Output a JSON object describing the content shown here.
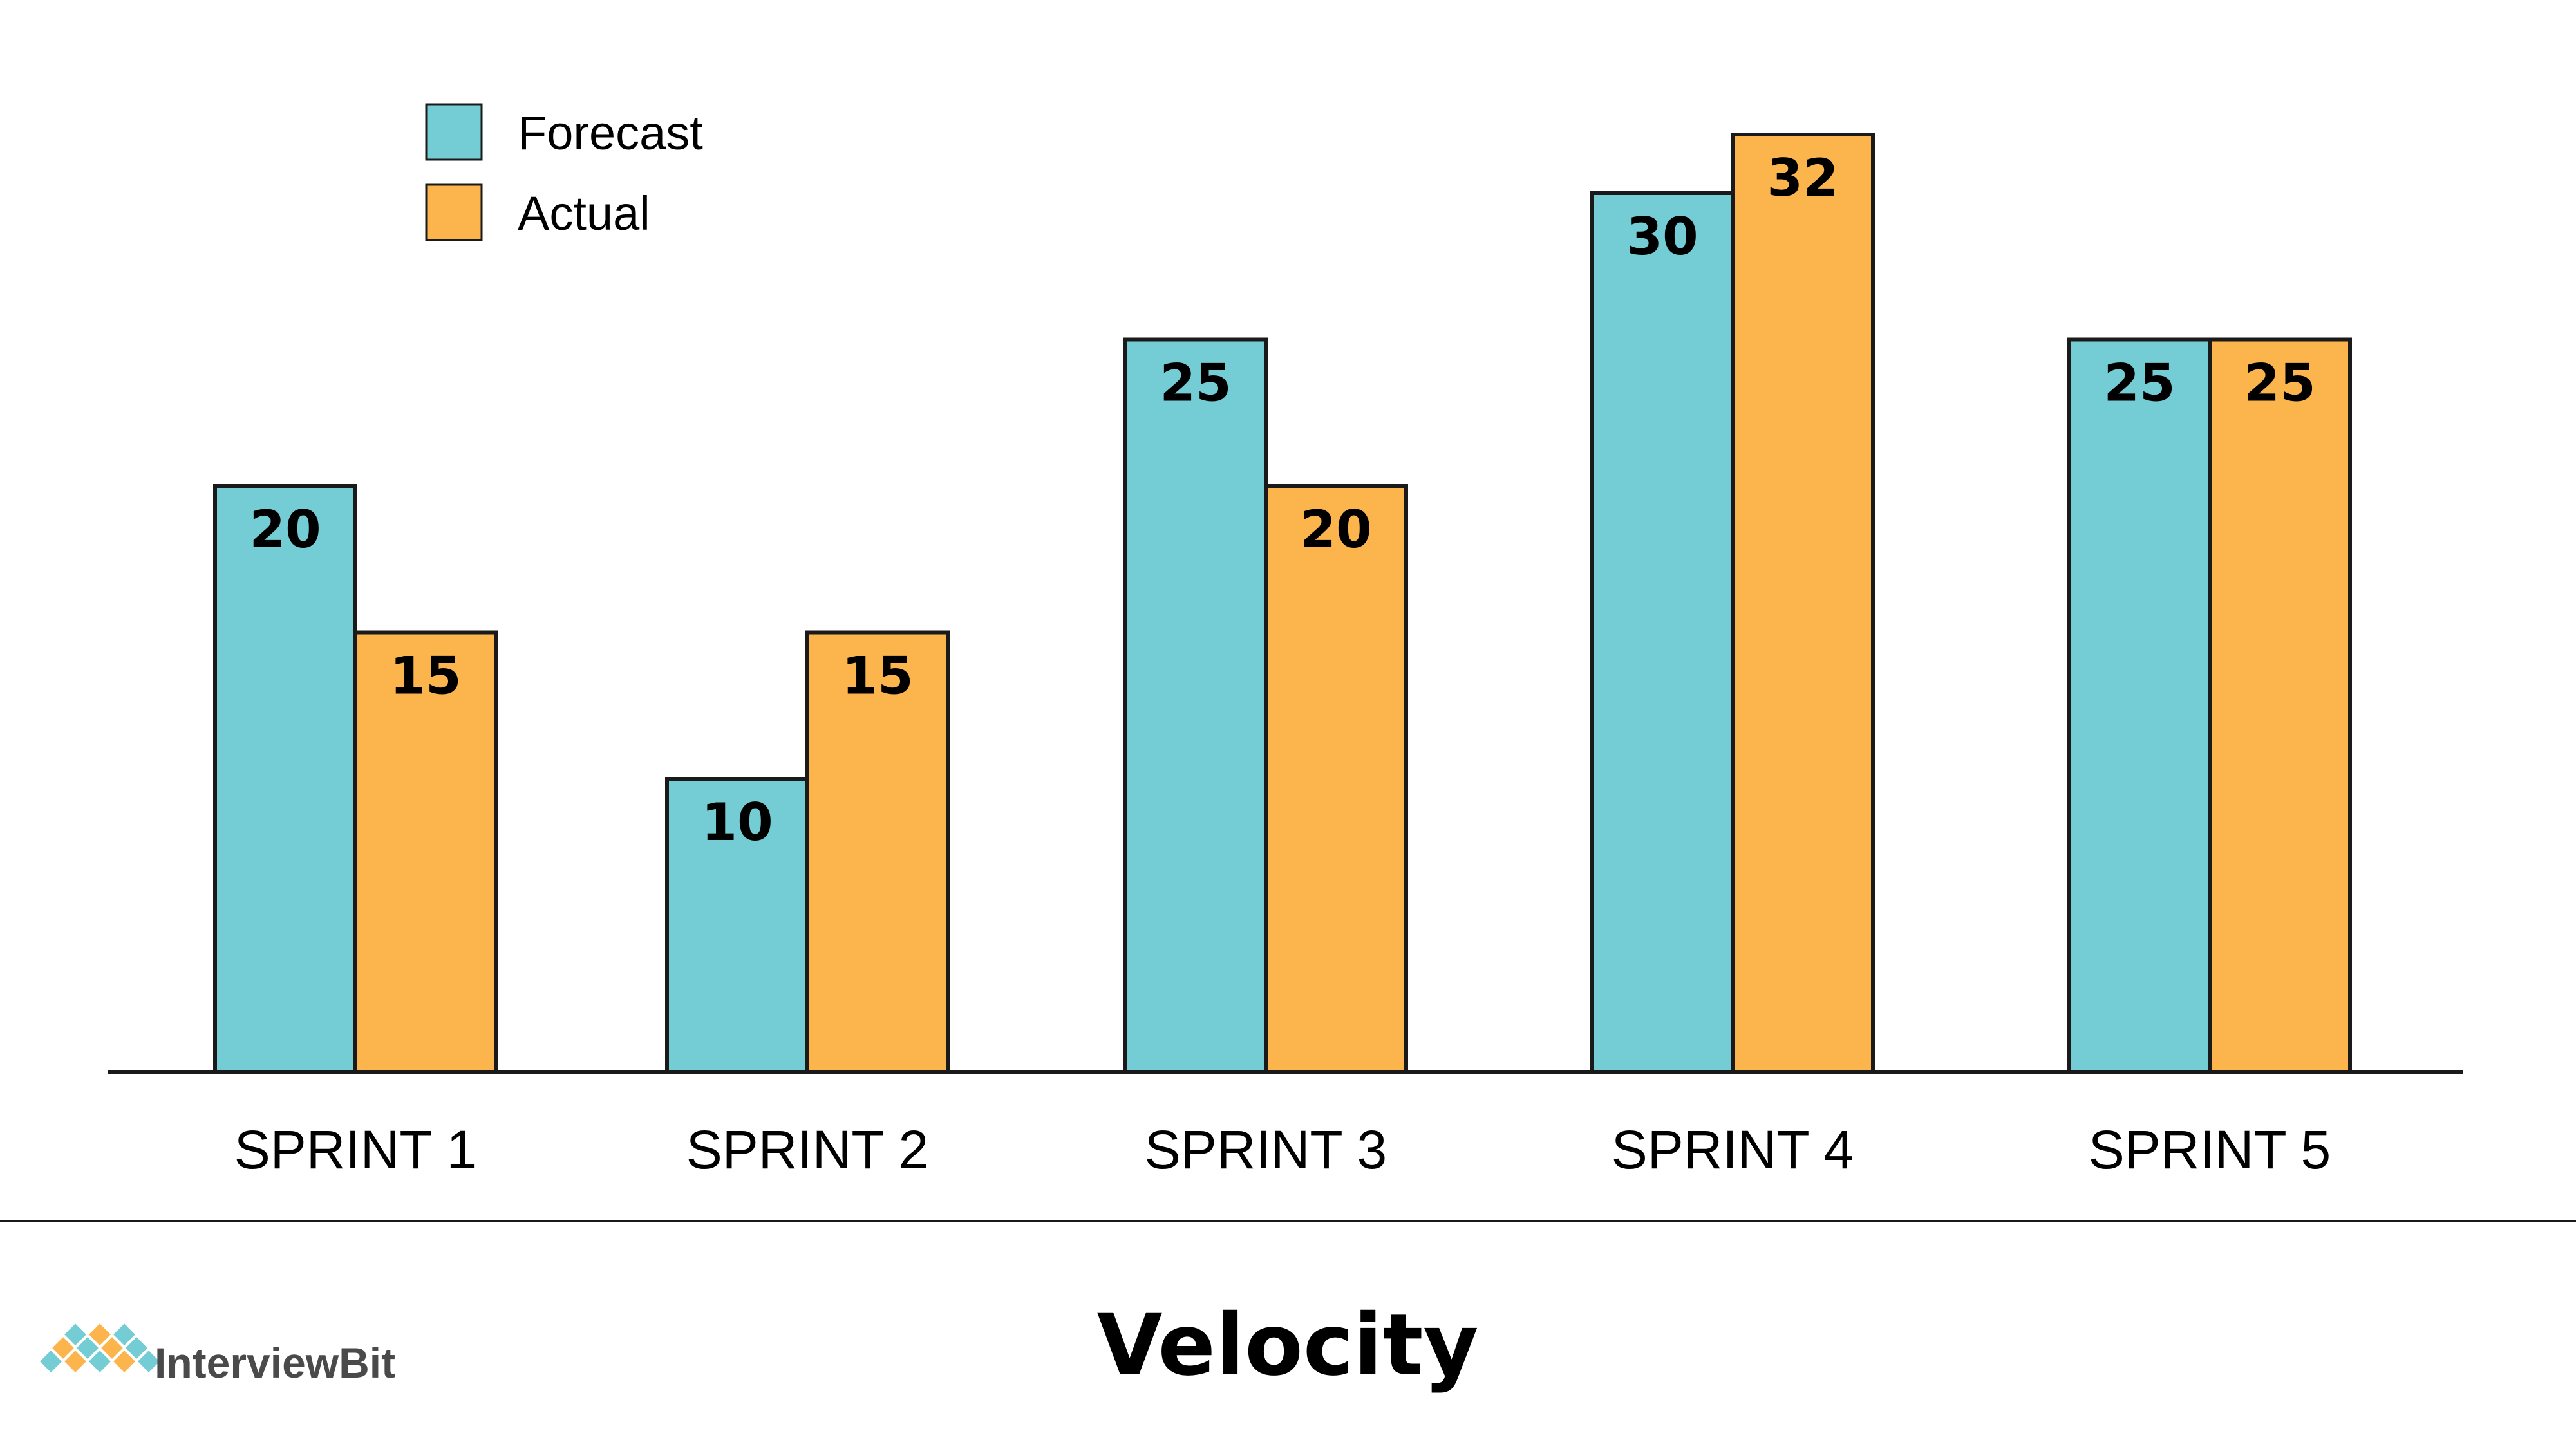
{
  "chart_data": {
    "type": "bar",
    "title": "Velocity",
    "categories": [
      "SPRINT 1",
      "SPRINT 2",
      "SPRINT 3",
      "SPRINT 4",
      "SPRINT 5"
    ],
    "series": [
      {
        "name": "Forecast",
        "color": "#74cdd4",
        "values": [
          20,
          10,
          25,
          30,
          25
        ]
      },
      {
        "name": "Actual",
        "color": "#fbb54c",
        "values": [
          15,
          15,
          20,
          32,
          25
        ]
      }
    ],
    "ylim": [
      0,
      36
    ],
    "grid": false,
    "legend": "top-left",
    "data_labels": true
  },
  "branding": {
    "logo_text": "InterviewBit",
    "logo_colors": [
      "#74cdd4",
      "#fbb54c"
    ]
  }
}
